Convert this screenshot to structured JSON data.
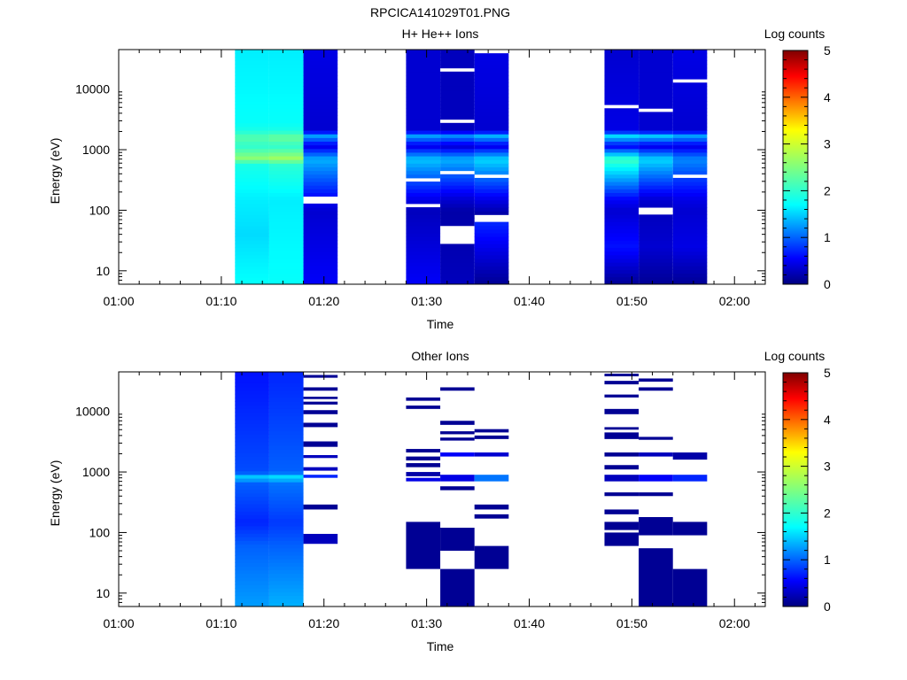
{
  "file_title": "RPCICA141029T01.PNG",
  "chart_data": [
    {
      "type": "heatmap",
      "title": "H+ He++ Ions",
      "xlabel": "Time",
      "ylabel": "Energy (eV)",
      "colorbar_label": "Log counts",
      "xlim": [
        "01:00",
        "02:03"
      ],
      "ylim": [
        6,
        45000
      ],
      "yscale": "log",
      "x_ticks": [
        "01:00",
        "01:10",
        "01:20",
        "01:30",
        "01:40",
        "01:50",
        "02:00"
      ],
      "y_ticks": [
        "10",
        "100",
        "1000",
        "10000"
      ],
      "colorbar_ticks": [
        "0",
        "1",
        "2",
        "3",
        "4",
        "5"
      ],
      "color_range": [
        0,
        5
      ],
      "scans": [
        {
          "start": "01:11:20",
          "end": "01:14:40",
          "e_min": 6,
          "e_max": 45000,
          "base": [
            [
              6,
              1.9
            ],
            [
              40,
              1.7
            ],
            [
              150,
              1.8
            ],
            [
              600,
              2.0
            ],
            [
              700,
              2.6
            ],
            [
              1150,
              2.1
            ],
            [
              1600,
              2.3
            ],
            [
              2100,
              2.0
            ],
            [
              2800,
              1.9
            ],
            [
              45000,
              1.8
            ]
          ]
        },
        {
          "start": "01:14:40",
          "end": "01:18:00",
          "e_min": 6,
          "e_max": 45000,
          "base": [
            [
              6,
              1.9
            ],
            [
              150,
              1.8
            ],
            [
              600,
              2.1
            ],
            [
              700,
              2.7
            ],
            [
              1150,
              2.1
            ],
            [
              1600,
              2.4
            ],
            [
              2100,
              2.0
            ],
            [
              2800,
              1.9
            ],
            [
              45000,
              1.8
            ]
          ]
        },
        {
          "start": "01:18:00",
          "end": "01:21:20",
          "e_min": 6,
          "e_max": 45000,
          "base": [
            [
              6,
              0.6
            ],
            [
              100,
              0.4
            ],
            [
              150,
              0.6
            ],
            [
              700,
              1.5
            ],
            [
              1150,
              0.5
            ],
            [
              1700,
              1.4
            ],
            [
              2100,
              0.4
            ],
            [
              45000,
              0.5
            ]
          ],
          "gaps": [
            [
              130,
              160
            ]
          ]
        },
        {
          "start": "01:28:00",
          "end": "01:31:20",
          "e_min": 6,
          "e_max": 45000,
          "base": [
            [
              6,
              0.6
            ],
            [
              100,
              0.3
            ],
            [
              150,
              0.5
            ],
            [
              700,
              1.6
            ],
            [
              1150,
              0.5
            ],
            [
              1700,
              1.4
            ],
            [
              2100,
              0.4
            ],
            [
              45000,
              0.4
            ]
          ],
          "gaps": [
            [
              120,
              135
            ],
            [
              300,
              330
            ],
            [
              33000,
              36000
            ]
          ]
        },
        {
          "start": "01:31:20",
          "end": "01:34:40",
          "e_min": 6,
          "e_max": 45000,
          "base": [
            [
              6,
              0.3
            ],
            [
              100,
              0.2
            ],
            [
              150,
              0.4
            ],
            [
              700,
              1.5
            ],
            [
              1150,
              0.4
            ],
            [
              1700,
              1.3
            ],
            [
              2100,
              0.3
            ],
            [
              45000,
              0.3
            ]
          ],
          "gaps": [
            [
              28,
              55
            ],
            [
              420,
              470
            ],
            [
              2700,
              3000
            ],
            [
              20000,
              22000
            ]
          ]
        },
        {
          "start": "01:34:40",
          "end": "01:38:00",
          "e_min": 6,
          "e_max": 45000,
          "base": [
            [
              6,
              0.1
            ],
            [
              60,
              0.8
            ],
            [
              90,
              0.2
            ],
            [
              150,
              0.5
            ],
            [
              700,
              1.7
            ],
            [
              1150,
              0.5
            ],
            [
              1700,
              1.5
            ],
            [
              2100,
              0.4
            ],
            [
              45000,
              0.5
            ]
          ],
          "gaps": [
            [
              60,
              90
            ],
            [
              330,
              370
            ],
            [
              28000,
              31000
            ],
            [
              40000,
              43000
            ]
          ]
        },
        {
          "start": "01:47:20",
          "end": "01:50:40",
          "e_min": 6,
          "e_max": 45000,
          "base": [
            [
              6,
              0.1
            ],
            [
              25,
              0.7
            ],
            [
              100,
              0.4
            ],
            [
              150,
              0.6
            ],
            [
              700,
              2.2
            ],
            [
              1150,
              0.6
            ],
            [
              1700,
              1.7
            ],
            [
              2100,
              0.5
            ],
            [
              45000,
              0.4
            ]
          ],
          "gaps": [
            [
              330,
              360
            ],
            [
              5000,
              5600
            ]
          ]
        },
        {
          "start": "01:50:40",
          "end": "01:54:00",
          "e_min": 6,
          "e_max": 45000,
          "base": [
            [
              6,
              0.1
            ],
            [
              25,
              0.4
            ],
            [
              100,
              0.3
            ],
            [
              150,
              0.4
            ],
            [
              700,
              1.7
            ],
            [
              1150,
              0.5
            ],
            [
              1700,
              1.6
            ],
            [
              2100,
              0.4
            ],
            [
              45000,
              0.4
            ]
          ],
          "gaps": [
            [
              90,
              120
            ],
            [
              4500,
              5000
            ]
          ]
        },
        {
          "start": "01:54:00",
          "end": "01:57:20",
          "e_min": 6,
          "e_max": 45000,
          "base": [
            [
              6,
              0.1
            ],
            [
              25,
              0.5
            ],
            [
              100,
              0.4
            ],
            [
              150,
              0.5
            ],
            [
              700,
              1.3
            ],
            [
              1150,
              0.5
            ],
            [
              1700,
              1.4
            ],
            [
              2100,
              0.4
            ],
            [
              45000,
              0.5
            ]
          ],
          "gaps": [
            [
              340,
              370
            ],
            [
              13000,
              14000
            ]
          ]
        }
      ]
    },
    {
      "type": "heatmap",
      "title": "Other Ions",
      "xlabel": "Time",
      "ylabel": "Energy (eV)",
      "colorbar_label": "Log counts",
      "xlim": [
        "01:00",
        "02:03"
      ],
      "ylim": [
        6,
        45000
      ],
      "yscale": "log",
      "x_ticks": [
        "01:00",
        "01:10",
        "01:20",
        "01:30",
        "01:40",
        "01:50",
        "02:00"
      ],
      "y_ticks": [
        "10",
        "100",
        "1000",
        "10000"
      ],
      "colorbar_ticks": [
        "0",
        "1",
        "2",
        "3",
        "4",
        "5"
      ],
      "color_range": [
        0,
        5
      ],
      "scans": [
        {
          "start": "01:11:20",
          "end": "01:14:40",
          "e_min": 6,
          "e_max": 45000,
          "base": [
            [
              6,
              1.4
            ],
            [
              60,
              1.1
            ],
            [
              150,
              0.8
            ],
            [
              700,
              1.1
            ],
            [
              800,
              1.8
            ],
            [
              1000,
              1.0
            ],
            [
              45000,
              0.7
            ]
          ]
        },
        {
          "start": "01:14:40",
          "end": "01:18:00",
          "e_min": 6,
          "e_max": 45000,
          "base": [
            [
              6,
              1.5
            ],
            [
              60,
              1.1
            ],
            [
              150,
              0.9
            ],
            [
              700,
              1.2
            ],
            [
              800,
              1.9
            ],
            [
              1000,
              1.1
            ],
            [
              45000,
              0.8
            ]
          ]
        },
        {
          "start": "01:18:00",
          "end": "01:21:20",
          "bands": [
            [
              240,
              290,
              0.1
            ],
            [
              65,
              95,
              0.3
            ],
            [
              800,
              900,
              0.8
            ],
            [
              1050,
              1200,
              0.3
            ],
            [
              1700,
              1900,
              0.3
            ],
            [
              2600,
              3200,
              0.1
            ],
            [
              5500,
              6500,
              0.1
            ],
            [
              9000,
              10500,
              0.1
            ],
            [
              13000,
              14500,
              0.1
            ],
            [
              16000,
              17500,
              0.1
            ],
            [
              22000,
              25000,
              0.1
            ],
            [
              36000,
              40000,
              0.1
            ]
          ]
        },
        {
          "start": "01:28:00",
          "end": "01:31:20",
          "bands": [
            [
              25,
              150,
              0.1
            ],
            [
              700,
              800,
              0.5
            ],
            [
              850,
              1000,
              0.2
            ],
            [
              1200,
              1400,
              0.1
            ],
            [
              1550,
              1800,
              0.1
            ],
            [
              2100,
              2400,
              0.1
            ],
            [
              11000,
              12500,
              0.1
            ],
            [
              15000,
              17000,
              0.1
            ]
          ]
        },
        {
          "start": "01:31:20",
          "end": "01:34:40",
          "bands": [
            [
              6,
              25,
              0.1
            ],
            [
              50,
              120,
              0.1
            ],
            [
              500,
              580,
              0.1
            ],
            [
              700,
              900,
              0.5
            ],
            [
              1800,
              2100,
              0.6
            ],
            [
              3300,
              3700,
              0.1
            ],
            [
              4200,
              4700,
              0.1
            ],
            [
              6000,
              7000,
              0.1
            ],
            [
              22000,
              25000,
              0.1
            ]
          ]
        },
        {
          "start": "01:34:40",
          "end": "01:38:00",
          "bands": [
            [
              25,
              60,
              0.1
            ],
            [
              170,
              200,
              0.1
            ],
            [
              240,
              290,
              0.1
            ],
            [
              700,
              900,
              1.2
            ],
            [
              1800,
              2100,
              0.4
            ],
            [
              3500,
              4000,
              0.1
            ],
            [
              4500,
              5100,
              0.1
            ]
          ]
        },
        {
          "start": "01:47:20",
          "end": "01:50:40",
          "bands": [
            [
              60,
              100,
              0.1
            ],
            [
              110,
              150,
              0.1
            ],
            [
              200,
              240,
              0.1
            ],
            [
              400,
              460,
              0.1
            ],
            [
              700,
              900,
              0.3
            ],
            [
              1100,
              1300,
              0.1
            ],
            [
              1800,
              2100,
              0.1
            ],
            [
              3500,
              4500,
              0.1
            ],
            [
              5000,
              5500,
              0.1
            ],
            [
              9000,
              11000,
              0.1
            ],
            [
              17000,
              19000,
              0.1
            ],
            [
              28000,
              32000,
              0.1
            ],
            [
              38000,
              42000,
              0.1
            ]
          ]
        },
        {
          "start": "01:50:40",
          "end": "01:54:00",
          "bands": [
            [
              6,
              55,
              0.1
            ],
            [
              90,
              180,
              0.1
            ],
            [
              400,
              460,
              0.1
            ],
            [
              700,
              900,
              0.6
            ],
            [
              1800,
              2100,
              0.3
            ],
            [
              3400,
              3800,
              0.1
            ],
            [
              22000,
              25000,
              0.1
            ],
            [
              31000,
              35000,
              0.1
            ]
          ]
        },
        {
          "start": "01:54:00",
          "end": "01:57:20",
          "bands": [
            [
              6,
              25,
              0.1
            ],
            [
              90,
              150,
              0.1
            ],
            [
              700,
              900,
              0.8
            ],
            [
              1600,
              2100,
              0.2
            ]
          ]
        }
      ]
    }
  ]
}
